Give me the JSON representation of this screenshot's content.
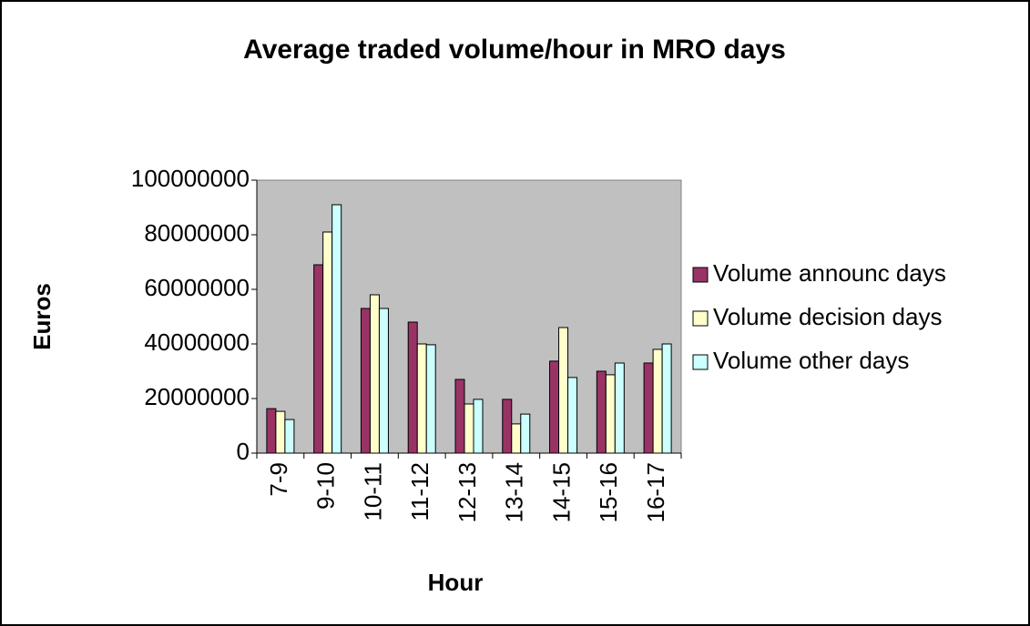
{
  "chart_data": {
    "type": "bar",
    "title": "Average traded volume/hour in MRO days",
    "x_label": "Hour",
    "y_label": "Euros",
    "categories": [
      "7-9",
      "9-10",
      "10-11",
      "11-12",
      "12-13",
      "13-14",
      "14-15",
      "15-16",
      "16-17"
    ],
    "series": [
      {
        "name": "Volume announc days",
        "color": "#993366",
        "values": [
          16300000,
          69000000,
          53000000,
          48000000,
          27000000,
          19700000,
          33700000,
          30000000,
          33000000
        ]
      },
      {
        "name": "Volume decision days",
        "color": "#ffffcc",
        "values": [
          15300000,
          81000000,
          58000000,
          40000000,
          18000000,
          10700000,
          46000000,
          28700000,
          38000000
        ]
      },
      {
        "name": "Volume other days",
        "color": "#ccffff",
        "values": [
          12300000,
          91000000,
          53000000,
          39700000,
          19700000,
          14300000,
          27700000,
          33000000,
          40000000
        ]
      }
    ],
    "ylim": [
      0,
      100000000
    ],
    "yticks": [
      0,
      20000000,
      40000000,
      60000000,
      80000000,
      100000000
    ],
    "legend": "right",
    "plot_background": "#c0c0c0"
  }
}
